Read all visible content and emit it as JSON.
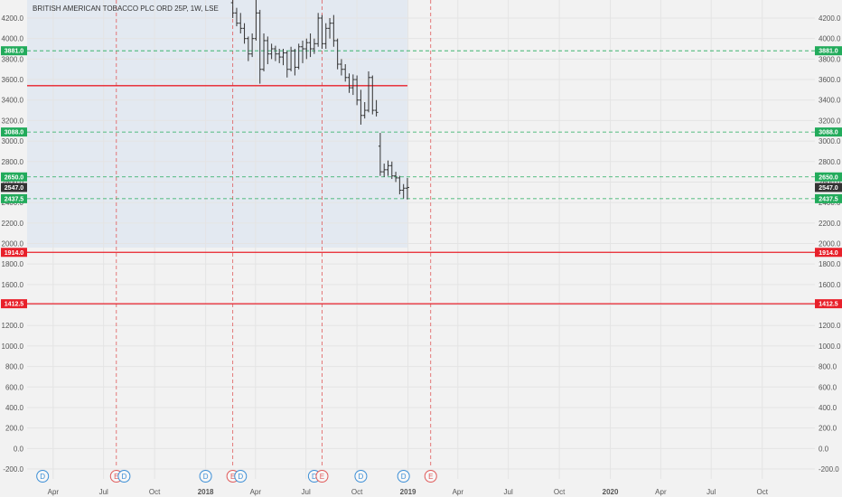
{
  "chart_data": {
    "type": "ohlc",
    "title": "BRITISH AMERICAN TOBACCO PLC ORD 25P, 1W, LSE",
    "ylim": [
      -200,
      4400
    ],
    "xlim": [
      "2017-02-13",
      "2021-01-04"
    ],
    "y_ticks": [
      "4200.0",
      "4000.0",
      "3800.0",
      "3600.0",
      "3400.0",
      "3200.0",
      "3000.0",
      "2800.0",
      "2600.0",
      "2400.0",
      "2200.0",
      "2000.0",
      "1800.0",
      "1600.0",
      "1400.0",
      "1200.0",
      "1000.0",
      "800.0",
      "600.0",
      "400.0",
      "200.0",
      "0.0",
      "-200.0"
    ],
    "y_tick_values": [
      4200,
      4000,
      3800,
      3600,
      3400,
      3200,
      3000,
      2800,
      2600,
      2400,
      2200,
      2000,
      1800,
      1600,
      1400,
      1200,
      1000,
      800,
      600,
      400,
      200,
      0,
      -200
    ],
    "x_ticks": [
      {
        "label": "Apr",
        "date": "2017-04-01",
        "bold": false
      },
      {
        "label": "Jul",
        "date": "2017-07-01",
        "bold": false
      },
      {
        "label": "Oct",
        "date": "2017-10-01",
        "bold": false
      },
      {
        "label": "2018",
        "date": "2018-01-01",
        "bold": true
      },
      {
        "label": "Apr",
        "date": "2018-04-01",
        "bold": false
      },
      {
        "label": "Jul",
        "date": "2018-07-01",
        "bold": false
      },
      {
        "label": "Oct",
        "date": "2018-10-01",
        "bold": false
      },
      {
        "label": "2019",
        "date": "2019-01-01",
        "bold": true
      },
      {
        "label": "Apr",
        "date": "2019-04-01",
        "bold": false
      },
      {
        "label": "Jul",
        "date": "2019-07-01",
        "bold": false
      },
      {
        "label": "Oct",
        "date": "2019-10-01",
        "bold": false
      },
      {
        "label": "2020",
        "date": "2020-01-01",
        "bold": true
      },
      {
        "label": "Apr",
        "date": "2020-04-01",
        "bold": false
      },
      {
        "label": "Jul",
        "date": "2020-07-01",
        "bold": false
      },
      {
        "label": "Oct",
        "date": "2020-10-01",
        "bold": false
      }
    ],
    "shaded_region": {
      "from": "2017-02-13",
      "to": "2018-12-31",
      "y_from": 1960,
      "color": "#e3e9f1"
    },
    "hlines": [
      {
        "value": 3881.0,
        "label": "3881.0",
        "color": "#22ab5b",
        "style": "dashed",
        "full": true
      },
      {
        "value": 3088.0,
        "label": "3088.0",
        "color": "#22ab5b",
        "style": "dashed",
        "full": true
      },
      {
        "value": 2650.0,
        "label": "2650.0",
        "color": "#22ab5b",
        "style": "dashed",
        "full": true
      },
      {
        "value": 2437.5,
        "label": "2437.5",
        "color": "#22ab5b",
        "style": "dashed",
        "full": true
      },
      {
        "value": 1914.0,
        "label": "1914.0",
        "color": "#e8202a",
        "style": "solid",
        "full": true
      },
      {
        "value": 1412.5,
        "label": "1412.5",
        "color": "#e8202a",
        "style": "solid",
        "full": true
      }
    ],
    "segment": {
      "value": 3540,
      "from": "2017-02-13",
      "to": "2018-12-31",
      "color": "#e8202a"
    },
    "last_price": {
      "value": 2547.0,
      "label": "2547.0",
      "color": "#333333"
    },
    "vlines": [
      "2017-07-24",
      "2018-02-19",
      "2018-07-30",
      "2019-02-11"
    ],
    "events": [
      {
        "type": "D",
        "date": "2017-03-13",
        "color": "#3d8fd6"
      },
      {
        "type": "E",
        "date": "2017-07-24",
        "color": "#e05a5a"
      },
      {
        "type": "D",
        "date": "2017-08-07",
        "color": "#3d8fd6"
      },
      {
        "type": "D",
        "date": "2018-01-01",
        "color": "#3d8fd6"
      },
      {
        "type": "E",
        "date": "2018-02-19",
        "color": "#e05a5a"
      },
      {
        "type": "D",
        "date": "2018-03-05",
        "color": "#3d8fd6"
      },
      {
        "type": "D",
        "date": "2018-07-16",
        "color": "#3d8fd6"
      },
      {
        "type": "E",
        "date": "2018-07-30",
        "color": "#e05a5a"
      },
      {
        "type": "D",
        "date": "2018-10-08",
        "color": "#3d8fd6"
      },
      {
        "type": "D",
        "date": "2018-12-24",
        "color": "#3d8fd6"
      },
      {
        "type": "E",
        "date": "2019-02-11",
        "color": "#e05a5a"
      }
    ],
    "bars": [
      {
        "date": "2018-02-19",
        "o": 4350,
        "h": 4420,
        "l": 4200,
        "c": 4250
      },
      {
        "date": "2018-02-26",
        "o": 4250,
        "h": 4300,
        "l": 4120,
        "c": 4150
      },
      {
        "date": "2018-03-05",
        "o": 4150,
        "h": 4250,
        "l": 4050,
        "c": 4100
      },
      {
        "date": "2018-03-12",
        "o": 4100,
        "h": 4150,
        "l": 3950,
        "c": 4000
      },
      {
        "date": "2018-03-19",
        "o": 4000,
        "h": 4020,
        "l": 3780,
        "c": 3850
      },
      {
        "date": "2018-03-26",
        "o": 3850,
        "h": 4050,
        "l": 3820,
        "c": 4000
      },
      {
        "date": "2018-04-02",
        "o": 4000,
        "h": 4400,
        "l": 3980,
        "c": 4250
      },
      {
        "date": "2018-04-09",
        "o": 4250,
        "h": 4280,
        "l": 3560,
        "c": 3700
      },
      {
        "date": "2018-04-16",
        "o": 3700,
        "h": 4050,
        "l": 3680,
        "c": 3980
      },
      {
        "date": "2018-04-23",
        "o": 3980,
        "h": 4020,
        "l": 3750,
        "c": 3850
      },
      {
        "date": "2018-04-30",
        "o": 3850,
        "h": 3950,
        "l": 3800,
        "c": 3900
      },
      {
        "date": "2018-05-07",
        "o": 3900,
        "h": 3930,
        "l": 3780,
        "c": 3850
      },
      {
        "date": "2018-05-14",
        "o": 3850,
        "h": 3900,
        "l": 3760,
        "c": 3820
      },
      {
        "date": "2018-05-21",
        "o": 3820,
        "h": 3900,
        "l": 3740,
        "c": 3860
      },
      {
        "date": "2018-05-28",
        "o": 3860,
        "h": 3880,
        "l": 3620,
        "c": 3700
      },
      {
        "date": "2018-06-04",
        "o": 3700,
        "h": 3920,
        "l": 3680,
        "c": 3880
      },
      {
        "date": "2018-06-11",
        "o": 3880,
        "h": 3900,
        "l": 3640,
        "c": 3720
      },
      {
        "date": "2018-06-18",
        "o": 3720,
        "h": 3950,
        "l": 3700,
        "c": 3920
      },
      {
        "date": "2018-06-25",
        "o": 3920,
        "h": 3980,
        "l": 3760,
        "c": 3900
      },
      {
        "date": "2018-07-02",
        "o": 3900,
        "h": 4000,
        "l": 3800,
        "c": 3960
      },
      {
        "date": "2018-07-09",
        "o": 3960,
        "h": 4050,
        "l": 3820,
        "c": 3900
      },
      {
        "date": "2018-07-16",
        "o": 3900,
        "h": 4000,
        "l": 3850,
        "c": 3950
      },
      {
        "date": "2018-07-23",
        "o": 3950,
        "h": 4250,
        "l": 3920,
        "c": 4200
      },
      {
        "date": "2018-07-30",
        "o": 4200,
        "h": 4230,
        "l": 3900,
        "c": 3950
      },
      {
        "date": "2018-08-06",
        "o": 3950,
        "h": 4150,
        "l": 3900,
        "c": 4100
      },
      {
        "date": "2018-08-13",
        "o": 4100,
        "h": 4200,
        "l": 4000,
        "c": 4150
      },
      {
        "date": "2018-08-20",
        "o": 4150,
        "h": 4230,
        "l": 3920,
        "c": 3980
      },
      {
        "date": "2018-08-27",
        "o": 3980,
        "h": 4000,
        "l": 3700,
        "c": 3750
      },
      {
        "date": "2018-09-03",
        "o": 3750,
        "h": 3800,
        "l": 3640,
        "c": 3700
      },
      {
        "date": "2018-09-10",
        "o": 3700,
        "h": 3750,
        "l": 3580,
        "c": 3620
      },
      {
        "date": "2018-09-17",
        "o": 3620,
        "h": 3660,
        "l": 3470,
        "c": 3520
      },
      {
        "date": "2018-09-24",
        "o": 3520,
        "h": 3650,
        "l": 3450,
        "c": 3600
      },
      {
        "date": "2018-10-01",
        "o": 3600,
        "h": 3640,
        "l": 3350,
        "c": 3400
      },
      {
        "date": "2018-10-08",
        "o": 3400,
        "h": 3500,
        "l": 3160,
        "c": 3250
      },
      {
        "date": "2018-10-15",
        "o": 3250,
        "h": 3380,
        "l": 3220,
        "c": 3300
      },
      {
        "date": "2018-10-22",
        "o": 3300,
        "h": 3680,
        "l": 3280,
        "c": 3620
      },
      {
        "date": "2018-10-29",
        "o": 3620,
        "h": 3640,
        "l": 3260,
        "c": 3300
      },
      {
        "date": "2018-11-05",
        "o": 3300,
        "h": 3400,
        "l": 3240,
        "c": 3280
      },
      {
        "date": "2018-11-12",
        "o": 2950,
        "h": 3080,
        "l": 2660,
        "c": 2700
      },
      {
        "date": "2018-11-19",
        "o": 2700,
        "h": 2780,
        "l": 2650,
        "c": 2720
      },
      {
        "date": "2018-11-26",
        "o": 2720,
        "h": 2810,
        "l": 2660,
        "c": 2760
      },
      {
        "date": "2018-12-03",
        "o": 2760,
        "h": 2800,
        "l": 2630,
        "c": 2660
      },
      {
        "date": "2018-12-10",
        "o": 2660,
        "h": 2700,
        "l": 2600,
        "c": 2640
      },
      {
        "date": "2018-12-17",
        "o": 2640,
        "h": 2660,
        "l": 2480,
        "c": 2520
      },
      {
        "date": "2018-12-24",
        "o": 2520,
        "h": 2580,
        "l": 2440,
        "c": 2540
      },
      {
        "date": "2018-12-31",
        "o": 2540,
        "h": 2640,
        "l": 2430,
        "c": 2547
      }
    ]
  }
}
